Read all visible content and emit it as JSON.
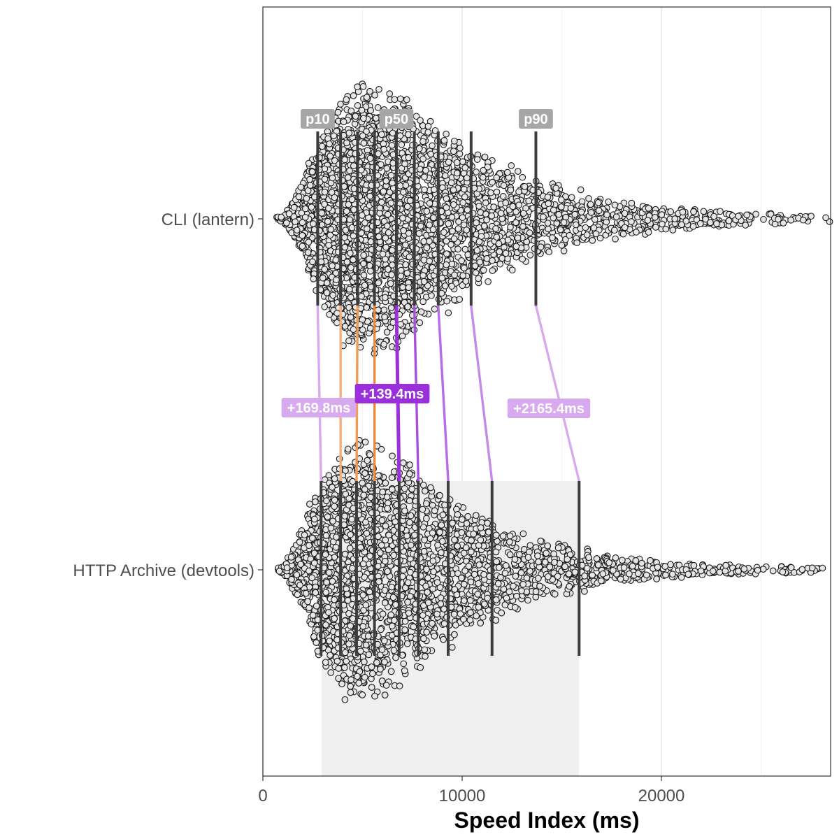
{
  "chart_data": {
    "type": "scatter",
    "subtype": "beeswarm-distribution-comparison",
    "xlabel": "Speed Index (ms)",
    "xlim": [
      0,
      28500
    ],
    "x_ticks": [
      0,
      10000,
      20000
    ],
    "x_tick_labels": [
      "0",
      "10000",
      "20000"
    ],
    "x_minor_gridlines": [
      5000,
      15000,
      25000
    ],
    "grid": true,
    "categories": [
      "CLI (lantern)",
      "HTTP Archive (devtools)"
    ],
    "series": [
      {
        "name": "CLI (lantern)",
        "percentiles": [
          {
            "p": 10,
            "value": 2750
          },
          {
            "p": 20,
            "value": 3900
          },
          {
            "p": 30,
            "value": 4750
          },
          {
            "p": 40,
            "value": 5600
          },
          {
            "p": 50,
            "value": 6700
          },
          {
            "p": 60,
            "value": 7600
          },
          {
            "p": 70,
            "value": 8800
          },
          {
            "p": 80,
            "value": 10450
          },
          {
            "p": 90,
            "value": 13700
          }
        ],
        "range": [
          600,
          28500
        ]
      },
      {
        "name": "HTTP Archive (devtools)",
        "percentiles": [
          {
            "p": 10,
            "value": 2920
          },
          {
            "p": 20,
            "value": 3900
          },
          {
            "p": 30,
            "value": 4700
          },
          {
            "p": 40,
            "value": 5600
          },
          {
            "p": 50,
            "value": 6840
          },
          {
            "p": 60,
            "value": 7800
          },
          {
            "p": 70,
            "value": 9300
          },
          {
            "p": 80,
            "value": 11500
          },
          {
            "p": 90,
            "value": 15870
          }
        ],
        "range": [
          400,
          28500
        ]
      }
    ],
    "percentile_labels": [
      {
        "p": 10,
        "label": "p10"
      },
      {
        "p": 50,
        "label": "p50"
      },
      {
        "p": 90,
        "label": "p90"
      }
    ],
    "shaded_range": [
      2950,
      15870
    ],
    "annotations": [
      {
        "p": 10,
        "text": "+169.8ms",
        "color": "#d7a9ee"
      },
      {
        "p": 50,
        "text": "+139.4ms",
        "color": "#9b2fdb"
      },
      {
        "p": 90,
        "text": "+2165.4ms",
        "color": "#d7a9ee"
      }
    ],
    "connector_colors": {
      "p10": "#d7a9ee",
      "p20": "#f3ae7c",
      "p30": "#f09a52",
      "p40": "#ee8a3a",
      "p50": "#9b2fdb",
      "p60": "#a84fe0",
      "p70": "#b66ce6",
      "p80": "#c48ae9",
      "p90": "#d7a9ee"
    },
    "colors": {
      "point_fill": "#e6e6e6",
      "point_stroke": "#1a1a1a",
      "percentile_line": "#3d3d3d",
      "badge_gray": "#a6a6a6",
      "shade": "#efefef"
    }
  }
}
